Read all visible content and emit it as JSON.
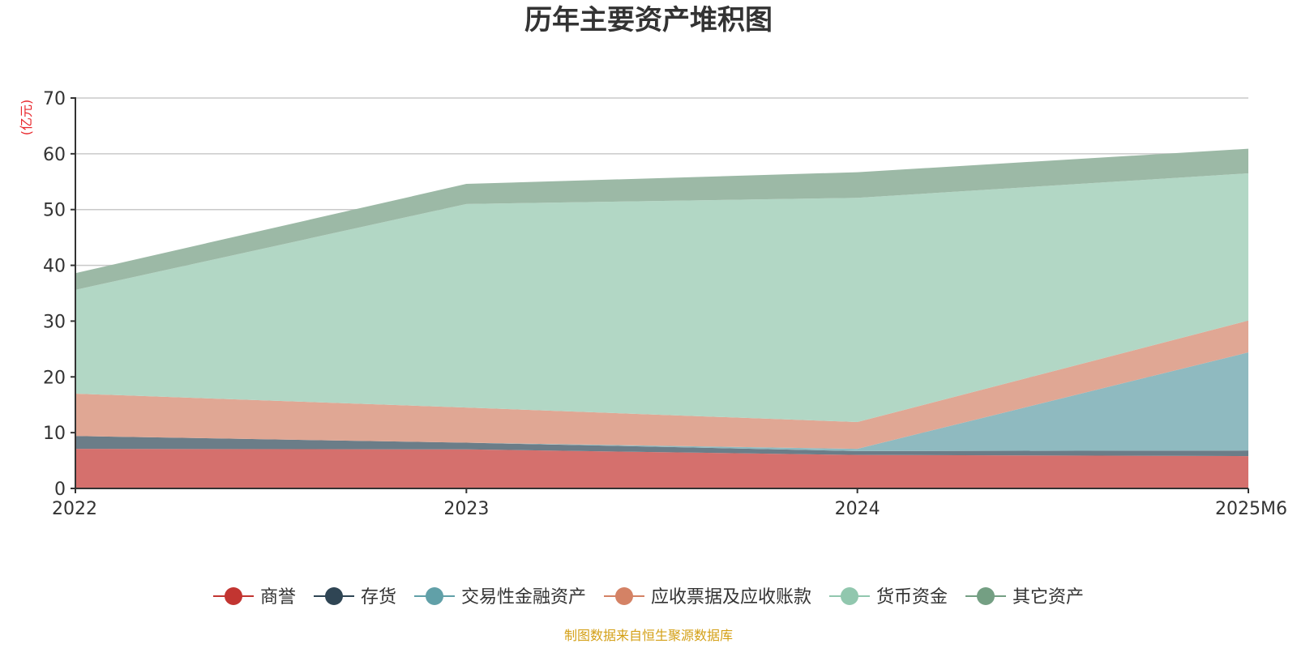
{
  "chart_data": {
    "type": "area",
    "stacked": true,
    "title": "历年主要资产堆积图",
    "unit_label": "(亿元)",
    "unit_color": "#e8262b",
    "categories": [
      "2022",
      "2023",
      "2024",
      "2025M6"
    ],
    "ylim": [
      0,
      70
    ],
    "yticks": [
      0,
      10,
      20,
      30,
      40,
      50,
      60,
      70
    ],
    "ytick_labels": [
      "0",
      "10",
      "20",
      "30",
      "40",
      "50",
      "60",
      "70"
    ],
    "grid": true,
    "legend_position": "bottom",
    "series": [
      {
        "name": "商誉",
        "values": [
          7.1,
          7.0,
          6.0,
          5.8
        ],
        "color": "#c23531",
        "fill": "#d5706d"
      },
      {
        "name": "存货",
        "values": [
          2.3,
          1.2,
          0.7,
          1.0
        ],
        "color": "#2f4554",
        "fill": "#6b7d88"
      },
      {
        "name": "交易性金融资产",
        "values": [
          0.0,
          0.0,
          0.4,
          17.6
        ],
        "color": "#61a0a8",
        "fill": "#8fbac0"
      },
      {
        "name": "应收票据及应收账款",
        "values": [
          7.6,
          6.3,
          4.8,
          5.7
        ],
        "color": "#d48265",
        "fill": "#e0a794"
      },
      {
        "name": "货币资金",
        "values": [
          18.6,
          36.5,
          40.2,
          26.4
        ],
        "color": "#91c7ae",
        "fill": "#b2d7c5"
      },
      {
        "name": "其它资产",
        "values": [
          3.0,
          3.6,
          4.6,
          4.4
        ],
        "color": "#749f83",
        "fill": "#9cb9a6"
      }
    ],
    "source_text": "制图数据来自恒生聚源数据库",
    "source_color": "#d4a017"
  }
}
